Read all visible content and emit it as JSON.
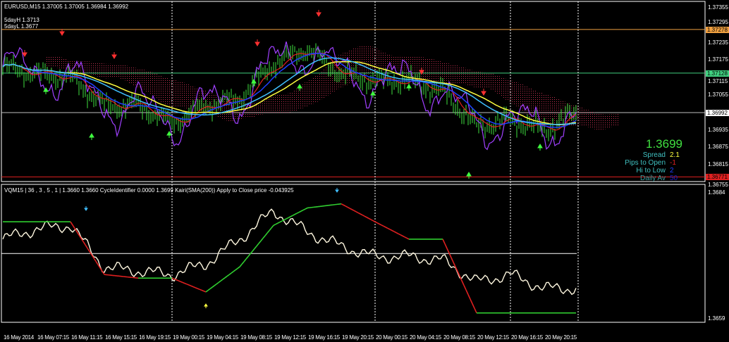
{
  "header": {
    "symbol_info": "EURUSD,M15  1.37005 1.37005 1.36984 1.36992",
    "five_day_high": "5dayH 1.3713",
    "five_day_low": "5dayL 1.3677"
  },
  "lower_header": "VQM15 | 36 , 3 , 5 , 1 | 1.3660 1.3660  CycleIdentifier 0.0000 1.3699  Kairi(SMA(200)) Apply to Close price -0.043925",
  "price_axis": [
    "1.37355",
    "1.37295",
    "1.37235",
    "1.37175",
    "1.37115",
    "1.37055",
    "1.36935",
    "1.36875",
    "1.36815",
    "1.36755"
  ],
  "price_tags": [
    {
      "label": "1.37278",
      "color": "#f0a040"
    },
    {
      "label": "1.37128",
      "color": "#40d080"
    },
    {
      "label": "1.36992",
      "color": "#ffffff"
    },
    {
      "label": "1.36771",
      "color": "#e02020"
    }
  ],
  "lower_axis": [
    "1.3684",
    "1.3659"
  ],
  "info": {
    "price": "1.3699",
    "spread_label": "Spread",
    "spread": "2.1",
    "pips_label": "Pips to Open",
    "pips": "-1",
    "hilo_label": "Hi to Low",
    "hilo": "2",
    "daily_label": "Daily Av",
    "daily": "50"
  },
  "colors": {
    "bars": "#40e040",
    "ma_yellow": "#ffff40",
    "ma_cyan": "#40c0ff",
    "ma_blue": "#2040ff",
    "purple": "#a040ff",
    "red": "#e02020",
    "cloud": "#c03050"
  },
  "chart_data": {
    "type": "line",
    "categories": [
      "16 May 2014",
      "16 May 07:15",
      "16 May 11:15",
      "16 May 15:15",
      "16 May 19:15",
      "19 May 00:15",
      "19 May 04:15",
      "19 May 08:15",
      "19 May 12:15",
      "19 May 16:15",
      "19 May 20:15",
      "20 May 00:15",
      "20 May 04:15",
      "20 May 08:15",
      "20 May 12:15",
      "20 May 16:15",
      "20 May 20:15"
    ],
    "close": [
      1.37149,
      1.37125,
      1.37113,
      1.37016,
      1.37016,
      1.36956,
      1.37016,
      1.3704,
      1.37161,
      1.3721,
      1.37125,
      1.37101,
      1.37101,
      1.37065,
      1.36944,
      1.36968,
      1.36931
    ],
    "last_close": 1.36992,
    "horizontal_levels": [
      1.37278,
      1.37128,
      1.36992,
      1.36771
    ],
    "ylim": [
      1.36755,
      1.37355
    ],
    "oscillator": {
      "ylim": [
        1.3659,
        1.3684
      ],
      "white": [
        1.36744,
        1.36764,
        1.36771,
        1.36689,
        1.36682,
        1.36675,
        1.36696,
        1.36744,
        1.36799,
        1.36758,
        1.3673,
        1.3671,
        1.3671,
        1.36703,
        1.36661,
        1.36675,
        1.36648
      ],
      "signal": [
        1.36778,
        1.36778,
        1.36778,
        1.36675,
        1.36668,
        1.36668,
        1.36641,
        1.3669,
        1.36771,
        1.36805,
        1.36813,
        1.36778,
        1.36744,
        1.36744,
        1.366,
        1.366,
        1.366
      ],
      "level": 1.36716
    }
  }
}
